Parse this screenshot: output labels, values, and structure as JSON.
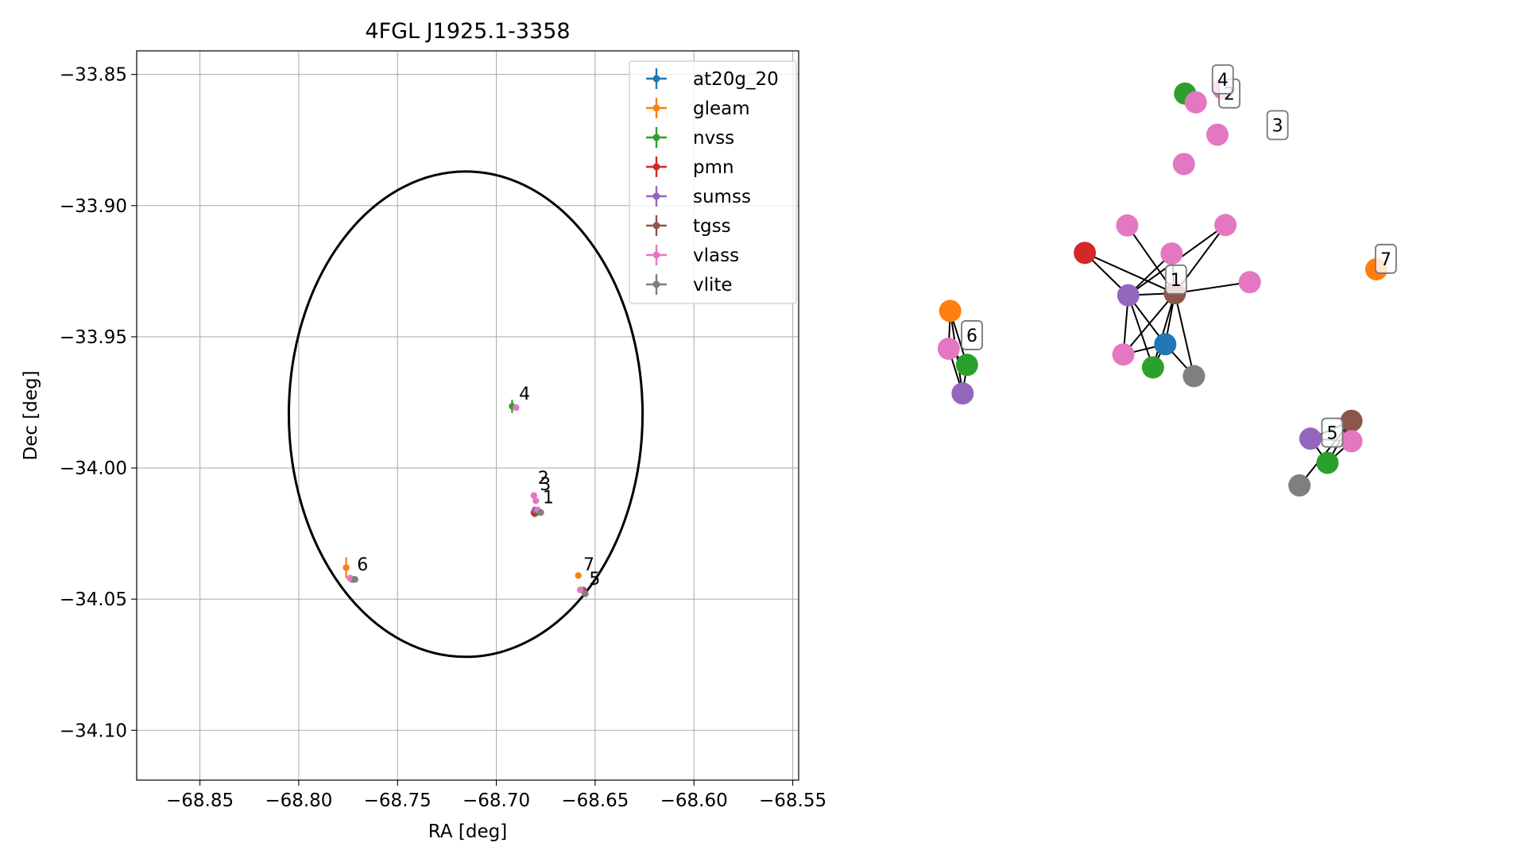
{
  "chart_data": [
    {
      "type": "scatter",
      "title": "4FGL J1925.1-3358",
      "xlabel": "RA [deg]",
      "ylabel": "Dec [deg]",
      "xlim": [
        -68.882,
        -68.547
      ],
      "ylim": [
        -34.119,
        -33.841
      ],
      "xticks": [
        -68.85,
        -68.8,
        -68.75,
        -68.7,
        -68.65,
        -68.6,
        -68.55
      ],
      "xtick_labels": [
        "−68.85",
        "−68.80",
        "−68.75",
        "−68.70",
        "−68.65",
        "−68.60",
        "−68.55"
      ],
      "yticks": [
        -33.85,
        -33.9,
        -33.95,
        -34.0,
        -34.05,
        -34.1
      ],
      "ytick_labels": [
        "−33.85",
        "−33.90",
        "−33.95",
        "−34.00",
        "−34.05",
        "−34.10"
      ],
      "grid": true,
      "legend_position": "top-right",
      "ellipse": {
        "center": [
          -68.7155,
          -33.9795
        ],
        "semi_axis_ra": 0.0895,
        "semi_axis_dec": 0.0925
      },
      "series": [
        {
          "name": "at20g_20",
          "color": "#1f77b4",
          "points": [
            {
              "x": -68.6795,
              "y": -34.017,
              "xerr": 0.0005,
              "yerr": 0.0005
            }
          ]
        },
        {
          "name": "gleam",
          "color": "#ff7f0e",
          "points": [
            {
              "x": -68.776,
              "y": -34.038,
              "xerr": 0.001,
              "yerr": 0.004
            },
            {
              "x": -68.6585,
              "y": -34.041,
              "xerr": 0.0005,
              "yerr": 0.001
            }
          ]
        },
        {
          "name": "nvss",
          "color": "#2ca02c",
          "points": [
            {
              "x": -68.692,
              "y": -33.9765,
              "xerr": 0.0005,
              "yerr": 0.0025
            },
            {
              "x": -68.7725,
              "y": -34.0425,
              "xerr": 0.0005,
              "yerr": 0.001
            },
            {
              "x": -68.6805,
              "y": -34.0175,
              "xerr": 0.0005,
              "yerr": 0.001
            },
            {
              "x": -68.6555,
              "y": -34.047,
              "xerr": 0.0005,
              "yerr": 0.001
            }
          ]
        },
        {
          "name": "pmn",
          "color": "#d62728",
          "points": [
            {
              "x": -68.681,
              "y": -34.017,
              "xerr": 0.0008,
              "yerr": 0.0015
            }
          ]
        },
        {
          "name": "sumss",
          "color": "#9467bd",
          "points": [
            {
              "x": -68.773,
              "y": -34.0425,
              "xerr": 0.0005,
              "yerr": 0.0005
            },
            {
              "x": -68.6805,
              "y": -34.016,
              "xerr": 0.0005,
              "yerr": 0.0005
            },
            {
              "x": -68.656,
              "y": -34.0465,
              "xerr": 0.0005,
              "yerr": 0.0005
            }
          ]
        },
        {
          "name": "tgss",
          "color": "#8c564b",
          "points": [
            {
              "x": -68.679,
              "y": -34.0165,
              "xerr": 0.0005,
              "yerr": 0.0005
            },
            {
              "x": -68.6555,
              "y": -34.047,
              "xerr": 0.0005,
              "yerr": 0.0005
            }
          ]
        },
        {
          "name": "vlass",
          "color": "#e377c2",
          "points": [
            {
              "x": -68.69,
              "y": -33.977,
              "xerr": 0.0003,
              "yerr": 0.0003
            },
            {
              "x": -68.681,
              "y": -34.0105,
              "xerr": 0.0003,
              "yerr": 0.0003
            },
            {
              "x": -68.68,
              "y": -34.0125,
              "xerr": 0.0003,
              "yerr": 0.0003
            },
            {
              "x": -68.679,
              "y": -34.016,
              "xerr": 0.0003,
              "yerr": 0.0003
            },
            {
              "x": -68.774,
              "y": -34.042,
              "xerr": 0.0003,
              "yerr": 0.0003
            },
            {
              "x": -68.6575,
              "y": -34.0465,
              "xerr": 0.0003,
              "yerr": 0.0003
            }
          ]
        },
        {
          "name": "vlite",
          "color": "#7f7f7f",
          "points": [
            {
              "x": -68.7715,
              "y": -34.0425,
              "xerr": 0.0005,
              "yerr": 0.0005
            },
            {
              "x": -68.6775,
              "y": -34.017,
              "xerr": 0.0005,
              "yerr": 0.0005
            },
            {
              "x": -68.655,
              "y": -34.048,
              "xerr": 0.0005,
              "yerr": 0.0005
            }
          ]
        }
      ],
      "annotations": [
        {
          "text": "4",
          "x": -68.6885,
          "y": -33.974
        },
        {
          "text": "2",
          "x": -68.679,
          "y": -34.006
        },
        {
          "text": "3",
          "x": -68.678,
          "y": -34.0085
        },
        {
          "text": "1",
          "x": -68.6765,
          "y": -34.0135
        },
        {
          "text": "6",
          "x": -68.7705,
          "y": -34.039
        },
        {
          "text": "7",
          "x": -68.656,
          "y": -34.039
        },
        {
          "text": "5",
          "x": -68.653,
          "y": -34.0445
        }
      ]
    },
    {
      "type": "network",
      "nodes": [
        {
          "id": "n1",
          "survey": "vlass",
          "color": "#e377c2",
          "pos": [
            0.3726,
            0.7656
          ]
        },
        {
          "id": "n2",
          "survey": "nvss",
          "color": "#2ca02c",
          "pos": [
            0.375,
            0.9037
          ]
        },
        {
          "id": "n3",
          "survey": "vlass",
          "color": "#e377c2",
          "pos": [
            0.3967,
            0.8865
          ]
        },
        {
          "id": "n4",
          "survey": "vlass",
          "color": "#e377c2",
          "pos": [
            0.4405,
            0.8231
          ]
        },
        {
          "id": "n5",
          "survey": "vlass",
          "color": "#e377c2",
          "pos": [
            0.4522,
            0.9133
          ]
        },
        {
          "id": "n6",
          "survey": "pmn",
          "color": "#d62728",
          "pos": [
            0.1722,
            0.5914
          ]
        },
        {
          "id": "n7",
          "survey": "vlass",
          "color": "#e377c2",
          "pos": [
            0.258,
            0.6452
          ]
        },
        {
          "id": "n8",
          "survey": "vlass",
          "color": "#e377c2",
          "pos": [
            0.3479,
            0.5902
          ]
        },
        {
          "id": "n9",
          "survey": "vlass",
          "color": "#e377c2",
          "pos": [
            0.4567,
            0.646
          ]
        },
        {
          "id": "n10",
          "survey": "gleam",
          "color": "#ff7f0e",
          "pos": [
            0.762,
            0.5592
          ]
        },
        {
          "id": "n11",
          "survey": "vlass",
          "color": "#e377c2",
          "pos": [
            0.5059,
            0.534
          ]
        },
        {
          "id": "n12",
          "survey": "sumss",
          "color": "#9467bd",
          "pos": [
            0.2601,
            0.5083
          ]
        },
        {
          "id": "n13",
          "survey": "tgss",
          "color": "#8c564b",
          "pos": [
            0.3544,
            0.5122
          ]
        },
        {
          "id": "n14",
          "survey": "gleam",
          "color": "#ff7f0e",
          "pos": [
            -0.1002,
            0.4776
          ]
        },
        {
          "id": "n15",
          "survey": "at20g_20",
          "color": "#1f77b4",
          "pos": [
            0.3349,
            0.4122
          ]
        },
        {
          "id": "n16",
          "survey": "vlass",
          "color": "#e377c2",
          "pos": [
            -0.1032,
            0.4035
          ]
        },
        {
          "id": "n17",
          "survey": "vlass",
          "color": "#e377c2",
          "pos": [
            0.2502,
            0.3922
          ]
        },
        {
          "id": "n18",
          "survey": "nvss",
          "color": "#2ca02c",
          "pos": [
            -0.0662,
            0.3718
          ]
        },
        {
          "id": "n19",
          "survey": "nvss",
          "color": "#2ca02c",
          "pos": [
            0.3101,
            0.3669
          ]
        },
        {
          "id": "n20",
          "survey": "vlite",
          "color": "#7f7f7f",
          "pos": [
            0.3929,
            0.3498
          ]
        },
        {
          "id": "n21",
          "survey": "sumss",
          "color": "#9467bd",
          "pos": [
            -0.075,
            0.3158
          ]
        },
        {
          "id": "n22",
          "survey": "tgss",
          "color": "#8c564b",
          "pos": [
            0.7116,
            0.2621
          ]
        },
        {
          "id": "n23",
          "survey": "sumss",
          "color": "#9467bd",
          "pos": [
            0.6285,
            0.2272
          ]
        },
        {
          "id": "n24",
          "survey": "vlass",
          "color": "#e377c2",
          "pos": [
            0.7116,
            0.2221
          ]
        },
        {
          "id": "n25",
          "survey": "nvss",
          "color": "#2ca02c",
          "pos": [
            0.6631,
            0.1798
          ]
        },
        {
          "id": "n26",
          "survey": "vlite",
          "color": "#7f7f7f",
          "pos": [
            0.6064,
            0.1355
          ]
        }
      ],
      "edges": [
        [
          "n2",
          "n3"
        ],
        [
          "n8",
          "n12"
        ],
        [
          "n8",
          "n13"
        ],
        [
          "n6",
          "n12"
        ],
        [
          "n6",
          "n13"
        ],
        [
          "n12",
          "n13"
        ],
        [
          "n12",
          "n9"
        ],
        [
          "n12",
          "n15"
        ],
        [
          "n12",
          "n17"
        ],
        [
          "n12",
          "n19"
        ],
        [
          "n11",
          "n13"
        ],
        [
          "n13",
          "n9"
        ],
        [
          "n13",
          "n15"
        ],
        [
          "n13",
          "n17"
        ],
        [
          "n13",
          "n19"
        ],
        [
          "n13",
          "n20"
        ],
        [
          "n7",
          "n13"
        ],
        [
          "n15",
          "n17"
        ],
        [
          "n15",
          "n19"
        ],
        [
          "n15",
          "n20"
        ],
        [
          "n14",
          "n16"
        ],
        [
          "n14",
          "n18"
        ],
        [
          "n14",
          "n21"
        ],
        [
          "n16",
          "n18"
        ],
        [
          "n16",
          "n21"
        ],
        [
          "n18",
          "n21"
        ],
        [
          "n22",
          "n23"
        ],
        [
          "n22",
          "n25"
        ],
        [
          "n22",
          "n26"
        ],
        [
          "n23",
          "n24"
        ],
        [
          "n23",
          "n25"
        ],
        [
          "n24",
          "n25"
        ]
      ],
      "labels": [
        {
          "text": "1",
          "pos": [
            0.3566,
            0.5392
          ]
        },
        {
          "text": "2",
          "pos": [
            0.4646,
            0.9039
          ]
        },
        {
          "text": "3",
          "pos": [
            0.562,
            0.8419
          ]
        },
        {
          "text": "4",
          "pos": [
            0.4513,
            0.9317
          ]
        },
        {
          "text": "5",
          "pos": [
            0.6728,
            0.239
          ]
        },
        {
          "text": "6",
          "pos": [
            -0.0562,
            0.43
          ]
        },
        {
          "text": "7",
          "pos": [
            0.7811,
            0.5797
          ]
        }
      ]
    }
  ]
}
